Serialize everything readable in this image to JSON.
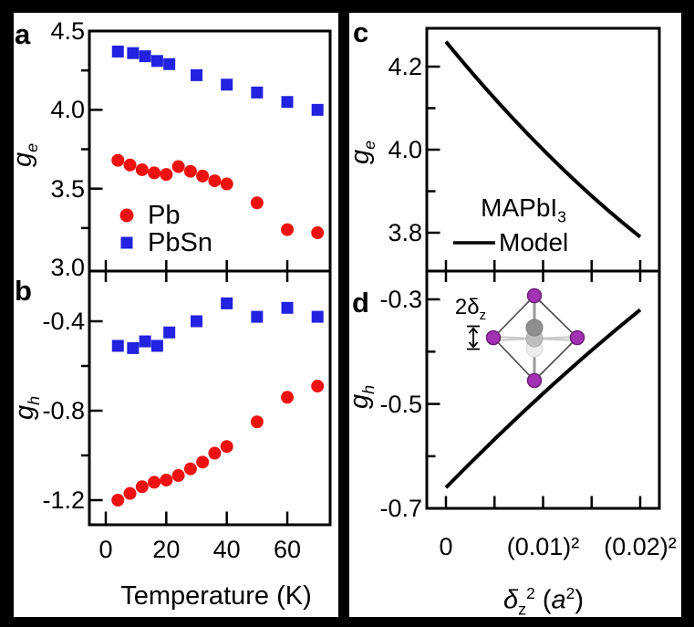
{
  "meta": {
    "background": "#000000",
    "figure_background": "#ffffff"
  },
  "labels": {
    "panel_letters": [
      "a",
      "b",
      "c",
      "d"
    ],
    "ylabel_ge": [
      "g",
      "e"
    ],
    "ylabel_gh": [
      "g",
      "h"
    ],
    "xlabel_left": "Temperature (K)",
    "xlabel_right_parts": [
      "δ",
      "z",
      "2",
      " (",
      "a",
      "2",
      ")"
    ],
    "legend_pb": "Pb",
    "legend_pbsn": "PbSn",
    "annotation_parts": [
      "MAPbI",
      "3"
    ],
    "legend_model": "Model",
    "inset_label_parts": [
      "2δ",
      "z"
    ]
  },
  "colors": {
    "pb": "#ee1111",
    "pbsn": "#2222e0",
    "model": "#000000",
    "inset_purple": "#a231b3",
    "inset_purple_edge": "#6f2078",
    "inset_grays": [
      "#8f8f8f",
      "#bdbdbd",
      "#ececec"
    ]
  },
  "chart_data": [
    {
      "panel": "a",
      "type": "scatter",
      "ylabel": "ge",
      "xlabel": "Temperature (K)",
      "ylim": [
        3.0,
        4.5
      ],
      "xlim": [
        -5,
        74
      ],
      "y_tick_labels": [
        {
          "v": 4.5,
          "t": "4.5"
        },
        {
          "v": 4.0,
          "t": "4.0"
        },
        {
          "v": 3.5,
          "t": "3.5"
        },
        {
          "v": 3.0,
          "t": "3.0"
        }
      ],
      "y_major": [
        4.0,
        3.5
      ],
      "y_minor": [
        4.25,
        3.75,
        3.25
      ],
      "x_ticks": [
        0,
        20,
        40,
        60
      ],
      "legend_position": "lower-left",
      "series": [
        {
          "name": "Pb",
          "marker": "circle",
          "color": "#ee1111",
          "x": [
            4,
            8,
            12,
            16,
            20,
            24,
            28,
            32,
            36,
            40,
            50,
            60,
            70
          ],
          "y": [
            3.68,
            3.65,
            3.62,
            3.6,
            3.59,
            3.64,
            3.61,
            3.58,
            3.55,
            3.53,
            3.41,
            3.24,
            3.22
          ]
        },
        {
          "name": "PbSn",
          "marker": "square",
          "color": "#2222e0",
          "x": [
            4,
            9,
            13,
            17,
            21,
            30,
            40,
            50,
            60,
            70
          ],
          "y": [
            4.37,
            4.36,
            4.34,
            4.31,
            4.29,
            4.22,
            4.16,
            4.11,
            4.05,
            4.0
          ]
        }
      ]
    },
    {
      "panel": "b",
      "type": "scatter",
      "ylabel": "gh",
      "xlabel": "Temperature (K)",
      "ylim": [
        -1.32,
        -0.2
      ],
      "xlim": [
        -5,
        74
      ],
      "y_tick_labels": [
        {
          "v": -0.4,
          "t": "-0.4"
        },
        {
          "v": -0.8,
          "t": "-0.8"
        },
        {
          "v": -1.2,
          "t": "-1.2"
        }
      ],
      "y_major": [
        -0.4,
        -0.8,
        -1.2
      ],
      "y_minor": [
        -0.6,
        -1.0
      ],
      "x_ticks": [
        0,
        20,
        40,
        60
      ],
      "x_tick_labels": [
        "0",
        "20",
        "40",
        "60"
      ],
      "series": [
        {
          "name": "Pb",
          "marker": "circle",
          "color": "#ee1111",
          "x": [
            4,
            8,
            12,
            16,
            20,
            24,
            28,
            32,
            36,
            40,
            50,
            60,
            70
          ],
          "y": [
            -1.2,
            -1.17,
            -1.14,
            -1.12,
            -1.11,
            -1.09,
            -1.06,
            -1.03,
            -0.99,
            -0.96,
            -0.85,
            -0.74,
            -0.69
          ]
        },
        {
          "name": "PbSn",
          "marker": "square",
          "color": "#2222e0",
          "x": [
            4,
            9,
            13,
            17,
            21,
            30,
            40,
            50,
            60,
            70
          ],
          "y": [
            -0.51,
            -0.52,
            -0.49,
            -0.51,
            -0.45,
            -0.4,
            -0.32,
            -0.38,
            -0.34,
            -0.38
          ]
        }
      ]
    },
    {
      "panel": "c",
      "type": "line",
      "ylabel": "ge",
      "xlabel": "δz² (a²)",
      "ylim": [
        3.7,
        4.3
      ],
      "x_axis": "linear in δz, tick labels given as δz²",
      "y_tick_labels": [
        {
          "v": 4.2,
          "t": "4.2"
        },
        {
          "v": 4.0,
          "t": "4.0"
        },
        {
          "v": 3.8,
          "t": "3.8"
        }
      ],
      "y_major": [
        4.2,
        4.0,
        3.8
      ],
      "y_minor": [
        4.1,
        3.9
      ],
      "x_ticks_delta_z": [
        0,
        0.005,
        0.01,
        0.015,
        0.02
      ],
      "annotation": "MAPbI3",
      "series": [
        {
          "name": "Model",
          "color": "#000000",
          "x_delta_z": [
            0,
            0.005,
            0.01,
            0.015,
            0.02
          ],
          "y": [
            4.26,
            4.13,
            4.0,
            3.89,
            3.79
          ]
        }
      ]
    },
    {
      "panel": "d",
      "type": "line",
      "ylabel": "gh",
      "xlabel": "δz² (a²)",
      "ylim": [
        -0.7,
        -0.25
      ],
      "x_axis": "linear in δz, tick labels given as δz²",
      "y_tick_labels": [
        {
          "v": -0.3,
          "t": "-0.3"
        },
        {
          "v": -0.5,
          "t": "-0.5"
        },
        {
          "v": -0.7,
          "t": "-0.7"
        }
      ],
      "y_major": [
        -0.3,
        -0.5
      ],
      "y_minor": [
        -0.4,
        -0.6
      ],
      "x_ticks_delta_z": [
        0,
        0.005,
        0.01,
        0.015,
        0.02
      ],
      "x_tick_labels": [
        {
          "d": 0,
          "t": "0"
        },
        {
          "d": 0.01,
          "t": "(0.01)²"
        },
        {
          "d": 0.02,
          "t": "(0.02)²"
        }
      ],
      "inset": "PbI6 octahedron with central atom displaced by 2δz",
      "series": [
        {
          "name": "Model",
          "color": "#000000",
          "x_delta_z": [
            0,
            0.005,
            0.01,
            0.015,
            0.02
          ],
          "y": [
            -0.66,
            -0.57,
            -0.48,
            -0.4,
            -0.32
          ]
        }
      ]
    }
  ]
}
